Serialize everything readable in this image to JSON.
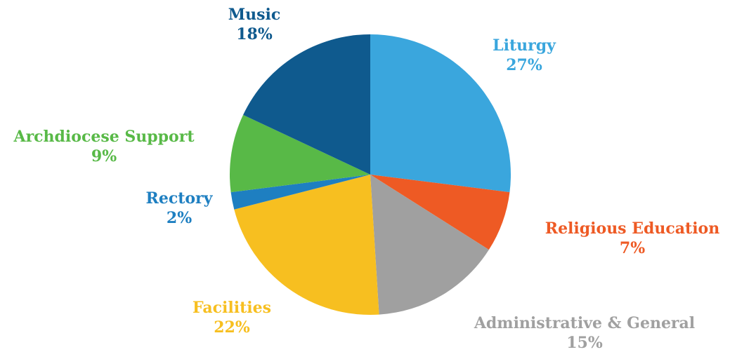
{
  "chart_data": {
    "type": "pie",
    "start": "12 o'clock",
    "direction": "clockwise",
    "legend": "none",
    "slices": [
      {
        "label": "Liturgy",
        "value": 27,
        "value_label": "27%",
        "color": "#3aa6dd"
      },
      {
        "label": "Religious Education",
        "value": 7,
        "value_label": "7%",
        "color": "#ee5a24"
      },
      {
        "label": "Administrative & General",
        "value": 15,
        "value_label": "15%",
        "color": "#a0a0a0"
      },
      {
        "label": "Facilities",
        "value": 22,
        "value_label": "22%",
        "color": "#f7bf20"
      },
      {
        "label": "Rectory",
        "value": 2,
        "value_label": "2%",
        "color": "#1e7fc1"
      },
      {
        "label": "Archdiocese Support",
        "value": 9,
        "value_label": "9%",
        "color": "#58b947"
      },
      {
        "label": "Music",
        "value": 18,
        "value_label": "18%",
        "color": "#0f5a8e"
      }
    ]
  }
}
